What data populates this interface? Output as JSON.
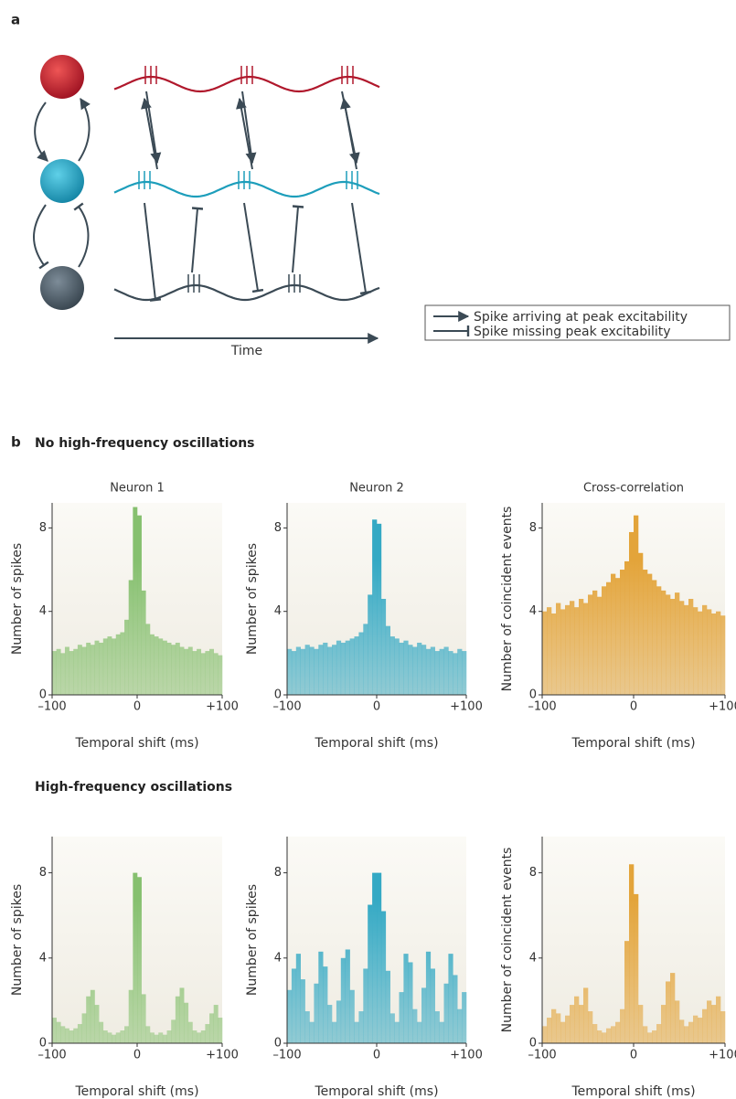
{
  "panel_a": {
    "label": "a",
    "time_label": "Time",
    "legend": [
      "Spike arriving at peak excitability",
      "Spike missing peak excitability"
    ]
  },
  "panel_b": {
    "label": "b",
    "heading_top": "No high-frequency oscillations",
    "heading_bottom": "High-frequency oscillations"
  },
  "chart_data": [
    {
      "type": "histogram",
      "title": "Neuron 1",
      "x_label": "Temporal shift (ms)",
      "y_label": "Number of spikes",
      "color": "#86c06f",
      "bins": [
        -100,
        -95,
        -90,
        -85,
        -80,
        -75,
        -70,
        -65,
        -60,
        -55,
        -50,
        -45,
        -40,
        -35,
        -30,
        -25,
        -20,
        -15,
        -10,
        -5,
        0,
        5,
        10,
        15,
        20,
        25,
        30,
        35,
        40,
        45,
        50,
        55,
        60,
        65,
        70,
        75,
        80,
        85,
        90,
        95,
        100
      ],
      "values": [
        2.1,
        2.2,
        2.0,
        2.3,
        2.1,
        2.2,
        2.4,
        2.3,
        2.5,
        2.4,
        2.6,
        2.5,
        2.7,
        2.8,
        2.7,
        2.9,
        3.0,
        3.6,
        5.5,
        9.0,
        8.6,
        5.0,
        3.4,
        2.9,
        2.8,
        2.7,
        2.6,
        2.5,
        2.4,
        2.5,
        2.3,
        2.2,
        2.3,
        2.1,
        2.2,
        2.0,
        2.1,
        2.2,
        2.0,
        1.9
      ],
      "xlim": [
        -100,
        100
      ],
      "xticks": [
        {
          "value": -100,
          "label": "–100"
        },
        0,
        {
          "value": 100,
          "label": "+100"
        }
      ],
      "ylim": [
        0,
        9.2
      ],
      "yticks": [
        0,
        4,
        8
      ]
    },
    {
      "type": "histogram",
      "title": "Neuron 2",
      "x_label": "Temporal shift (ms)",
      "y_label": "Number of spikes",
      "color": "#34a9c4",
      "bins": [
        -100,
        -95,
        -90,
        -85,
        -80,
        -75,
        -70,
        -65,
        -60,
        -55,
        -50,
        -45,
        -40,
        -35,
        -30,
        -25,
        -20,
        -15,
        -10,
        -5,
        0,
        5,
        10,
        15,
        20,
        25,
        30,
        35,
        40,
        45,
        50,
        55,
        60,
        65,
        70,
        75,
        80,
        85,
        90,
        95,
        100
      ],
      "values": [
        2.2,
        2.1,
        2.3,
        2.2,
        2.4,
        2.3,
        2.2,
        2.4,
        2.5,
        2.3,
        2.4,
        2.6,
        2.5,
        2.6,
        2.7,
        2.8,
        3.0,
        3.4,
        4.8,
        8.4,
        8.2,
        4.6,
        3.3,
        2.8,
        2.7,
        2.5,
        2.6,
        2.4,
        2.3,
        2.5,
        2.4,
        2.2,
        2.3,
        2.1,
        2.2,
        2.3,
        2.1,
        2.0,
        2.2,
        2.1
      ],
      "xlim": [
        -100,
        100
      ],
      "xticks": [
        {
          "value": -100,
          "label": "–100"
        },
        0,
        {
          "value": 100,
          "label": "+100"
        }
      ],
      "ylim": [
        0,
        9.2
      ],
      "yticks": [
        0,
        4,
        8
      ]
    },
    {
      "type": "histogram",
      "title": "Cross-correlation",
      "x_label": "Temporal shift (ms)",
      "y_label": "Number of coincident events",
      "color": "#e3a43a",
      "bins": [
        -100,
        -95,
        -90,
        -85,
        -80,
        -75,
        -70,
        -65,
        -60,
        -55,
        -50,
        -45,
        -40,
        -35,
        -30,
        -25,
        -20,
        -15,
        -10,
        -5,
        0,
        5,
        10,
        15,
        20,
        25,
        30,
        35,
        40,
        45,
        50,
        55,
        60,
        65,
        70,
        75,
        80,
        85,
        90,
        95,
        100
      ],
      "values": [
        4.0,
        4.2,
        3.9,
        4.4,
        4.1,
        4.3,
        4.5,
        4.2,
        4.6,
        4.4,
        4.8,
        5.0,
        4.7,
        5.2,
        5.4,
        5.8,
        5.6,
        6.0,
        6.4,
        7.8,
        8.6,
        6.8,
        6.0,
        5.8,
        5.5,
        5.2,
        5.0,
        4.8,
        4.6,
        4.9,
        4.5,
        4.3,
        4.6,
        4.2,
        4.0,
        4.3,
        4.1,
        3.9,
        4.0,
        3.8
      ],
      "xlim": [
        -100,
        100
      ],
      "xticks": [
        {
          "value": -100,
          "label": "–100"
        },
        0,
        {
          "value": 100,
          "label": "+100"
        }
      ],
      "ylim": [
        0,
        9.2
      ],
      "yticks": [
        0,
        4,
        8
      ]
    },
    {
      "type": "histogram",
      "x_label": "Temporal shift (ms)",
      "y_label": "Number of spikes",
      "color": "#86c06f",
      "bins": [
        -100,
        -95,
        -90,
        -85,
        -80,
        -75,
        -70,
        -65,
        -60,
        -55,
        -50,
        -45,
        -40,
        -35,
        -30,
        -25,
        -20,
        -15,
        -10,
        -5,
        0,
        5,
        10,
        15,
        20,
        25,
        30,
        35,
        40,
        45,
        50,
        55,
        60,
        65,
        70,
        75,
        80,
        85,
        90,
        95,
        100
      ],
      "values": [
        1.2,
        1.0,
        0.8,
        0.7,
        0.6,
        0.7,
        0.9,
        1.4,
        2.2,
        2.5,
        1.8,
        1.0,
        0.6,
        0.5,
        0.4,
        0.5,
        0.6,
        0.8,
        2.5,
        8.0,
        7.8,
        2.3,
        0.8,
        0.5,
        0.4,
        0.5,
        0.4,
        0.6,
        1.1,
        2.2,
        2.6,
        1.9,
        1.0,
        0.6,
        0.5,
        0.6,
        0.9,
        1.4,
        1.8,
        1.2
      ],
      "xlim": [
        -100,
        100
      ],
      "xticks": [
        {
          "value": -100,
          "label": "–100"
        },
        0,
        {
          "value": 100,
          "label": "+100"
        }
      ],
      "ylim": [
        0,
        9.7
      ],
      "yticks": [
        0,
        4,
        8
      ]
    },
    {
      "type": "histogram",
      "x_label": "Temporal shift (ms)",
      "y_label": "Number of spikes",
      "color": "#34a9c4",
      "bins": [
        -100,
        -95,
        -90,
        -85,
        -80,
        -75,
        -70,
        -65,
        -60,
        -55,
        -50,
        -45,
        -40,
        -35,
        -30,
        -25,
        -20,
        -15,
        -10,
        -5,
        0,
        5,
        10,
        15,
        20,
        25,
        30,
        35,
        40,
        45,
        50,
        55,
        60,
        65,
        70,
        75,
        80,
        85,
        90,
        95,
        100
      ],
      "values": [
        2.5,
        3.5,
        4.2,
        3.0,
        1.5,
        1.0,
        2.8,
        4.3,
        3.6,
        1.8,
        1.0,
        2.0,
        4.0,
        4.4,
        2.5,
        1.0,
        1.5,
        3.5,
        6.5,
        8.0,
        8.0,
        6.2,
        3.4,
        1.4,
        1.0,
        2.4,
        4.2,
        3.8,
        1.6,
        1.0,
        2.6,
        4.3,
        3.5,
        1.5,
        1.0,
        2.8,
        4.2,
        3.2,
        1.6,
        2.4
      ],
      "xlim": [
        -100,
        100
      ],
      "xticks": [
        {
          "value": -100,
          "label": "–100"
        },
        0,
        {
          "value": 100,
          "label": "+100"
        }
      ],
      "ylim": [
        0,
        9.7
      ],
      "yticks": [
        0,
        4,
        8
      ]
    },
    {
      "type": "histogram",
      "x_label": "Temporal shift (ms)",
      "y_label": "Number of coincident events",
      "color": "#e3a43a",
      "bins": [
        -100,
        -95,
        -90,
        -85,
        -80,
        -75,
        -70,
        -65,
        -60,
        -55,
        -50,
        -45,
        -40,
        -35,
        -30,
        -25,
        -20,
        -15,
        -10,
        -5,
        0,
        5,
        10,
        15,
        20,
        25,
        30,
        35,
        40,
        45,
        50,
        55,
        60,
        65,
        70,
        75,
        80,
        85,
        90,
        95,
        100
      ],
      "values": [
        0.8,
        1.2,
        1.6,
        1.4,
        1.0,
        1.3,
        1.8,
        2.2,
        1.8,
        2.6,
        1.5,
        0.9,
        0.6,
        0.5,
        0.7,
        0.8,
        1.0,
        1.6,
        4.8,
        8.4,
        7.0,
        1.8,
        0.8,
        0.5,
        0.6,
        0.9,
        1.8,
        2.9,
        3.3,
        2.0,
        1.1,
        0.8,
        1.0,
        1.3,
        1.2,
        1.6,
        2.0,
        1.8,
        2.2,
        1.5
      ],
      "xlim": [
        -100,
        100
      ],
      "xticks": [
        {
          "value": -100,
          "label": "–100"
        },
        0,
        {
          "value": 100,
          "label": "+100"
        }
      ],
      "ylim": [
        0,
        9.7
      ],
      "yticks": [
        0,
        4,
        8
      ]
    }
  ]
}
